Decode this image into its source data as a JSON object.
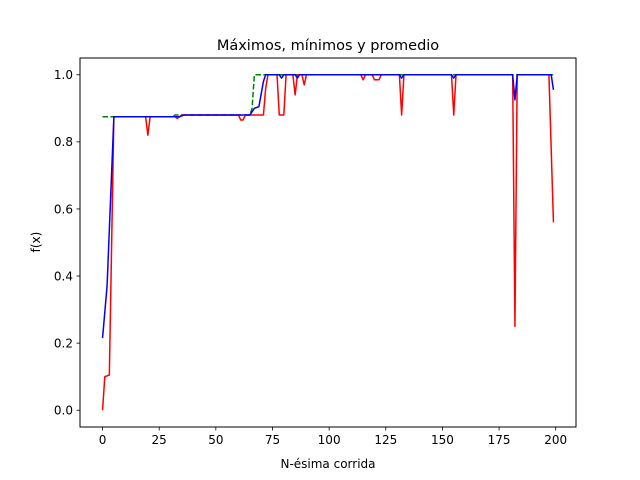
{
  "chart_data": {
    "type": "line",
    "title": "Máximos, mínimos y promedio",
    "xlabel": "N-ésima corrida",
    "ylabel": "f(x)",
    "xlim": [
      -9.95,
      208.95
    ],
    "ylim": [
      -0.05,
      1.05
    ],
    "xticks": [
      0,
      25,
      50,
      75,
      100,
      125,
      150,
      175,
      200
    ],
    "yticks": [
      0.0,
      0.2,
      0.4,
      0.6,
      0.8,
      1.0
    ],
    "ytick_labels": [
      "0.0",
      "0.2",
      "0.4",
      "0.6",
      "0.8",
      "1.0"
    ],
    "grid": false,
    "legend": false,
    "series": [
      {
        "color": "#008000",
        "linestyle": "dashed",
        "points": [
          [
            0,
            0.875
          ],
          [
            31,
            0.875
          ],
          [
            32,
            0.88
          ],
          [
            65,
            0.88
          ],
          [
            66,
            0.9
          ],
          [
            67,
            1.0
          ],
          [
            199,
            1.0
          ]
        ]
      },
      {
        "color": "#ff0000",
        "linestyle": "solid",
        "points": [
          [
            0,
            0.0
          ],
          [
            1,
            0.1
          ],
          [
            3,
            0.105
          ],
          [
            5,
            0.875
          ],
          [
            19,
            0.875
          ],
          [
            20,
            0.82
          ],
          [
            21,
            0.875
          ],
          [
            32,
            0.875
          ],
          [
            33,
            0.87
          ],
          [
            34,
            0.875
          ],
          [
            35,
            0.88
          ],
          [
            60,
            0.88
          ],
          [
            61,
            0.865
          ],
          [
            62,
            0.865
          ],
          [
            63,
            0.88
          ],
          [
            70,
            0.88
          ],
          [
            71,
            0.88
          ],
          [
            72,
            0.96
          ],
          [
            73,
            1.0
          ],
          [
            77,
            1.0
          ],
          [
            78,
            0.88
          ],
          [
            80,
            0.88
          ],
          [
            81,
            1.0
          ],
          [
            84,
            1.0
          ],
          [
            85,
            0.94
          ],
          [
            86,
            1.0
          ],
          [
            88,
            1.0
          ],
          [
            89,
            0.97
          ],
          [
            90,
            1.0
          ],
          [
            114,
            1.0
          ],
          [
            115,
            0.985
          ],
          [
            116,
            1.0
          ],
          [
            119,
            1.0
          ],
          [
            120,
            0.985
          ],
          [
            122,
            0.985
          ],
          [
            123,
            1.0
          ],
          [
            131,
            1.0
          ],
          [
            132,
            0.88
          ],
          [
            133,
            1.0
          ],
          [
            154,
            1.0
          ],
          [
            155,
            0.88
          ],
          [
            156,
            1.0
          ],
          [
            181,
            1.0
          ],
          [
            182,
            0.25
          ],
          [
            183,
            1.0
          ],
          [
            197,
            1.0
          ],
          [
            199,
            0.56
          ]
        ]
      },
      {
        "color": "#0000ff",
        "linestyle": "solid",
        "points": [
          [
            0,
            0.215
          ],
          [
            2,
            0.37
          ],
          [
            5,
            0.875
          ],
          [
            30,
            0.875
          ],
          [
            34,
            0.875
          ],
          [
            36,
            0.88
          ],
          [
            65,
            0.88
          ],
          [
            67,
            0.9
          ],
          [
            69,
            0.905
          ],
          [
            71,
            0.98
          ],
          [
            72,
            1.0
          ],
          [
            78,
            1.0
          ],
          [
            79,
            0.99
          ],
          [
            80,
            1.0
          ],
          [
            85,
            1.0
          ],
          [
            86,
            0.99
          ],
          [
            87,
            1.0
          ],
          [
            131,
            1.0
          ],
          [
            132,
            0.99
          ],
          [
            133,
            1.0
          ],
          [
            154,
            1.0
          ],
          [
            155,
            0.99
          ],
          [
            156,
            1.0
          ],
          [
            181,
            1.0
          ],
          [
            182,
            0.925
          ],
          [
            183,
            1.0
          ],
          [
            198,
            1.0
          ],
          [
            199,
            0.955
          ]
        ]
      }
    ]
  }
}
